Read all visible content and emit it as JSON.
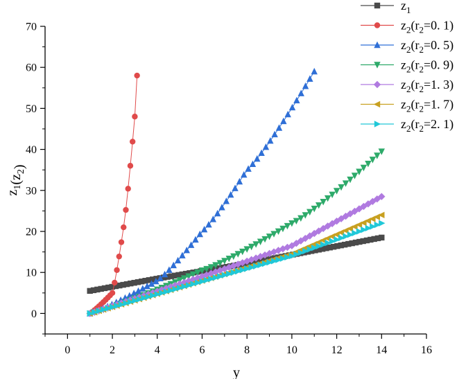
{
  "chart_data": {
    "type": "scatter",
    "title": "",
    "xlabel": "y",
    "ylabel": "z1(z2)",
    "xlim": [
      -1,
      16
    ],
    "ylim": [
      -5,
      70
    ],
    "xticks": [
      0,
      2,
      4,
      6,
      8,
      10,
      12,
      14,
      16
    ],
    "yticks": [
      0,
      10,
      20,
      30,
      40,
      50,
      60,
      70
    ],
    "legend": "top-right",
    "series": [
      {
        "name": "z1",
        "label": {
          "base": "z",
          "sub": "1",
          "paren": ""
        },
        "color": "#4a4a4a",
        "marker": "square",
        "x_start": 1.0,
        "x_end": 14.0,
        "points": 80,
        "y_start": 5.5,
        "y_end": 18.5,
        "curve_exp": 1.0,
        "anchors_x": [
          1,
          4,
          8,
          14
        ],
        "anchors_y": [
          5.5,
          8.5,
          12.2,
          18.5
        ]
      },
      {
        "name": "z2 (r2=0.1)",
        "label": {
          "base": "z",
          "sub": "2",
          "paren": "r",
          "psub": "2",
          "val": "=0. 1)"
        },
        "color": "#e04a4a",
        "marker": "circle",
        "x_start": 1.0,
        "x_end": 3.1,
        "points": 22,
        "y_start": 0,
        "y_end": 58,
        "curve_exp": 1.7,
        "anchors_x": [
          1.0,
          2.0,
          2.5,
          3.0,
          3.1
        ],
        "anchors_y": [
          0,
          5,
          21,
          48,
          58
        ]
      },
      {
        "name": "z2 (r2=0.5)",
        "label": {
          "base": "z",
          "sub": "2",
          "paren": "r",
          "psub": "2",
          "val": "=0. 5)"
        },
        "color": "#2f6fd6",
        "marker": "triangle-up",
        "x_start": 1.0,
        "x_end": 11.0,
        "points": 52,
        "y_start": 0,
        "y_end": 59,
        "curve_exp": 1.6,
        "anchors_x": [
          1,
          4,
          6,
          8,
          11
        ],
        "anchors_y": [
          0,
          8,
          20,
          35,
          59
        ]
      },
      {
        "name": "z2 (r2=0.9)",
        "label": {
          "base": "z",
          "sub": "2",
          "paren": "r",
          "psub": "2",
          "val": "=0. 9)"
        },
        "color": "#2eaa6a",
        "marker": "triangle-down",
        "x_start": 1.0,
        "x_end": 14.0,
        "points": 66,
        "y_start": 0,
        "y_end": 39.5,
        "curve_exp": 1.35,
        "anchors_x": [
          1,
          6,
          10,
          14
        ],
        "anchors_y": [
          0,
          10.5,
          22,
          39.5
        ]
      },
      {
        "name": "z2 (r2=1.3)",
        "label": {
          "base": "z",
          "sub": "2",
          "paren": "r",
          "psub": "2",
          "val": "=1. 3)"
        },
        "color": "#b07ae0",
        "marker": "diamond",
        "x_start": 1.0,
        "x_end": 14.0,
        "points": 66,
        "y_start": 0,
        "y_end": 28.5,
        "curve_exp": 1.2,
        "anchors_x": [
          1,
          6,
          10,
          14
        ],
        "anchors_y": [
          0,
          9,
          16.5,
          28.5
        ]
      },
      {
        "name": "z2 (r2=1.7)",
        "label": {
          "base": "z",
          "sub": "2",
          "paren": "r",
          "psub": "2",
          "val": "=1. 7)"
        },
        "color": "#c8a020",
        "marker": "triangle-left",
        "x_start": 1.0,
        "x_end": 14.0,
        "points": 66,
        "y_start": 0,
        "y_end": 24,
        "curve_exp": 1.12,
        "anchors_x": [
          1,
          6,
          10,
          14
        ],
        "anchors_y": [
          0,
          8,
          14.5,
          24
        ]
      },
      {
        "name": "z2 (r2=2.1)",
        "label": {
          "base": "z",
          "sub": "2",
          "paren": "r",
          "psub": "2",
          "val": "=2. 1)"
        },
        "color": "#20c8d8",
        "marker": "triangle-right",
        "x_start": 1.0,
        "x_end": 14.0,
        "points": 66,
        "y_start": 0,
        "y_end": 22,
        "curve_exp": 1.08,
        "anchors_x": [
          1,
          6,
          10,
          14
        ],
        "anchors_y": [
          0,
          7.8,
          14,
          22
        ]
      }
    ]
  }
}
